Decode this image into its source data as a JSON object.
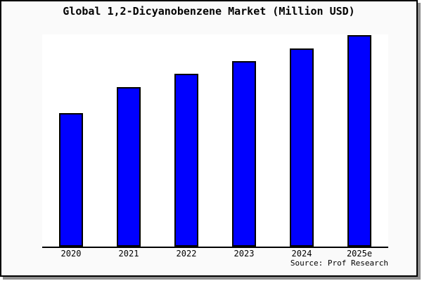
{
  "title": "Global 1,2-Dicyanobenzene Market (Million USD)",
  "source": "Source: Prof Research",
  "colors": {
    "bar_fill": "#0000ff",
    "bar_border": "#000000",
    "plot_background": "#ffffff",
    "canvas_background": "#fafafa",
    "frame_border": "#000000",
    "frame_shadow": "#8f8f8f",
    "axis_line": "#000000"
  },
  "chart_data": {
    "type": "bar",
    "title": "Global 1,2-Dicyanobenzene Market (Million USD)",
    "categories": [
      "2020",
      "2021",
      "2022",
      "2023",
      "2024",
      "2025e"
    ],
    "values": [
      63.0,
      75.3,
      81.6,
      87.8,
      93.8,
      100
    ],
    "values_unit": "relative height, % of tallest bar (2025e); y-axis has no tick labels in image",
    "xlabel": "",
    "ylabel": "",
    "y_axis_labels_shown": false,
    "grid": false,
    "legend": "none",
    "bar_color": "#0000ff",
    "bar_border_color": "#000000",
    "annotations": [
      "Source: Prof Research"
    ]
  }
}
